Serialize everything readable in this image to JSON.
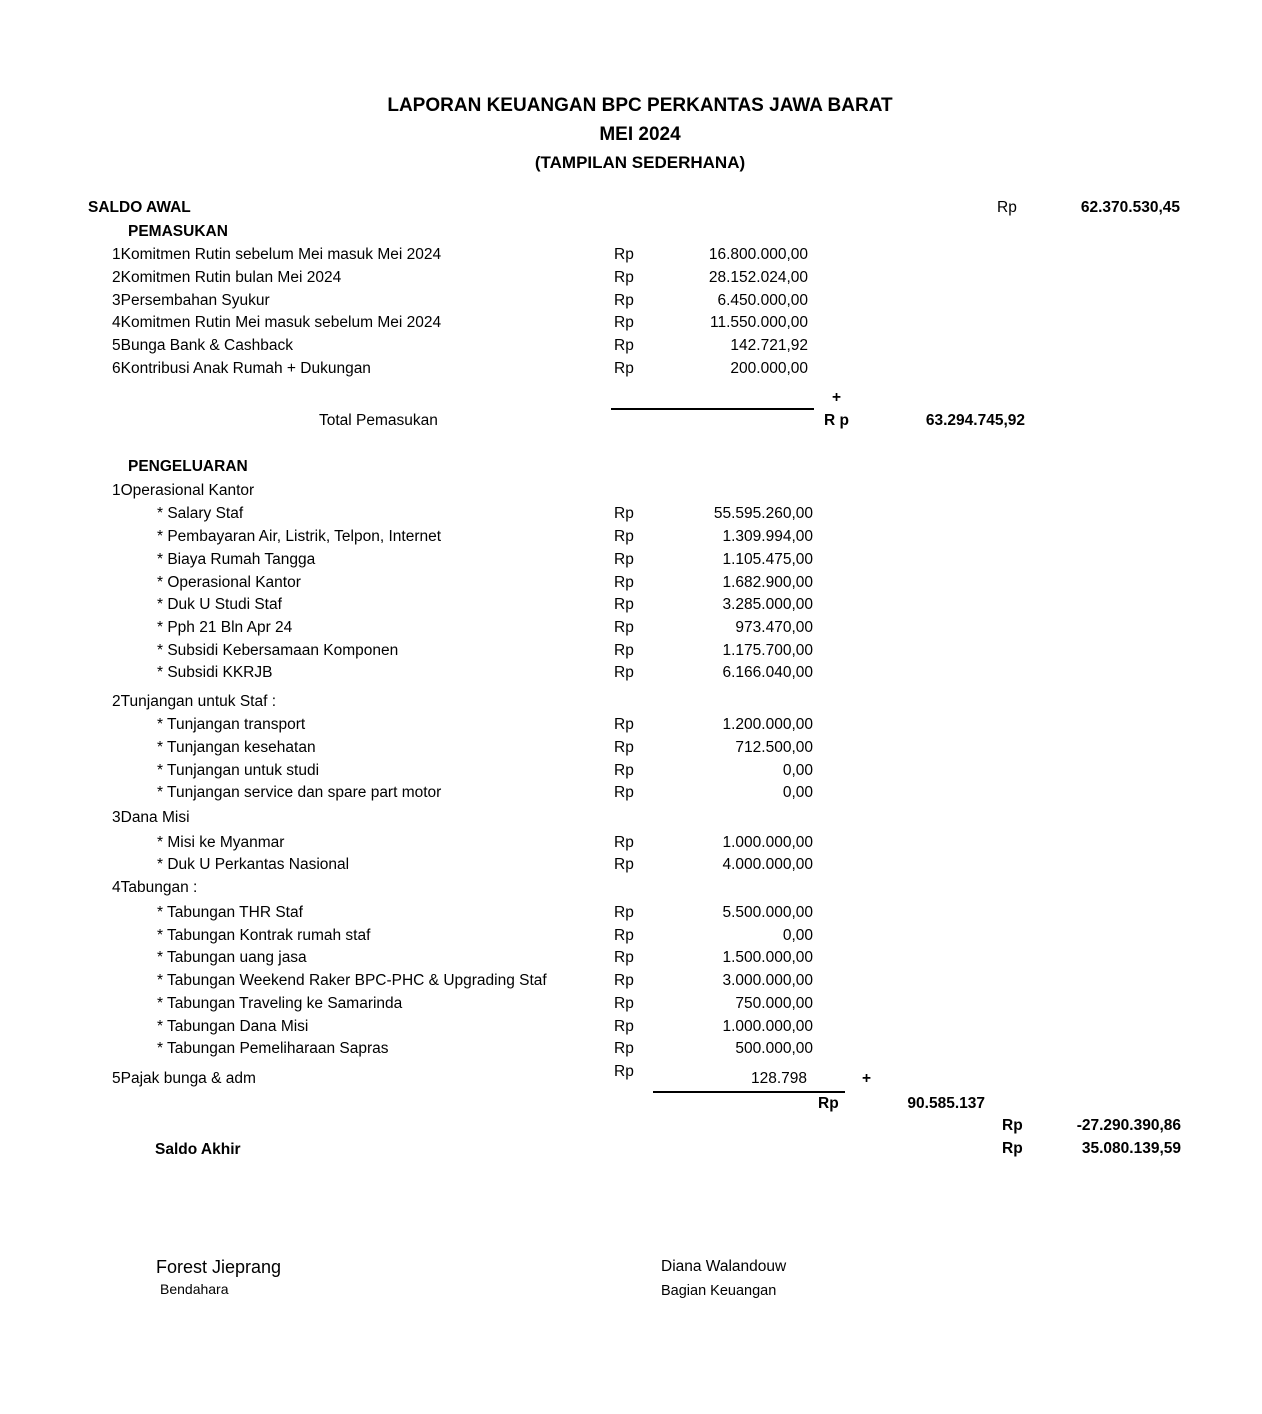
{
  "header": {
    "title": "LAPORAN KEUANGAN BPC PERKANTAS JAWA BARAT",
    "period": "MEI 2024",
    "subtitle": "(TAMPILAN SEDERHANA)"
  },
  "currency": "Rp",
  "saldo_awal": {
    "label": "SALDO AWAL",
    "currency": "Rp",
    "amount": "62.370.530,45"
  },
  "pemasukan": {
    "label": "PEMASUKAN",
    "items": [
      {
        "no": "1",
        "label": "Komitmen Rutin sebelum Mei masuk Mei 2024",
        "amount": "16.800.000,00"
      },
      {
        "no": "2",
        "label": "Komitmen Rutin bulan Mei 2024",
        "amount": "28.152.024,00"
      },
      {
        "no": "3",
        "label": "Persembahan Syukur",
        "amount": "6.450.000,00"
      },
      {
        "no": "4",
        "label": "Komitmen Rutin Mei masuk sebelum Mei 2024",
        "amount": "11.550.000,00"
      },
      {
        "no": "5",
        "label": "Bunga Bank & Cashback",
        "amount": "142.721,92"
      },
      {
        "no": "6",
        "label": "Kontribusi Anak Rumah + Dukungan",
        "amount": "200.000,00"
      }
    ],
    "plus": "+",
    "total_label": "Total Pemasukan",
    "total_currency": "R p",
    "total": "63.294.745,92"
  },
  "pengeluaran": {
    "label": "PENGELUARAN",
    "groups": [
      {
        "no": "1",
        "label": "Operasional Kantor",
        "items": [
          {
            "label": "* Salary Staf",
            "amount": "55.595.260,00"
          },
          {
            "label": "* Pembayaran Air, Listrik, Telpon, Internet",
            "amount": "1.309.994,00"
          },
          {
            "label": "* Biaya Rumah Tangga",
            "amount": "1.105.475,00"
          },
          {
            "label": "* Operasional Kantor",
            "amount": "1.682.900,00"
          },
          {
            "label": "* Duk U Studi Staf",
            "amount": "3.285.000,00"
          },
          {
            "label": "* Pph 21 Bln Apr 24",
            "amount": "973.470,00"
          },
          {
            "label": "* Subsidi Kebersamaan Komponen",
            "amount": "1.175.700,00"
          },
          {
            "label": "* Subsidi KKRJB",
            "amount": "6.166.040,00"
          }
        ]
      },
      {
        "no": "2",
        "label": "Tunjangan untuk Staf :",
        "items": [
          {
            "label": "* Tunjangan transport",
            "amount": "1.200.000,00"
          },
          {
            "label": "* Tunjangan kesehatan",
            "amount": "712.500,00"
          },
          {
            "label": "* Tunjangan untuk studi",
            "amount": "0,00"
          },
          {
            "label": "* Tunjangan service dan spare part motor",
            "amount": "0,00"
          }
        ]
      },
      {
        "no": "3",
        "label": "Dana Misi",
        "items": [
          {
            "label": "* Misi ke Myanmar",
            "amount": "1.000.000,00"
          },
          {
            "label": "* Duk U Perkantas Nasional",
            "amount": "4.000.000,00"
          }
        ]
      },
      {
        "no": "4",
        "label": "Tabungan :",
        "items": [
          {
            "label": "* Tabungan THR Staf",
            "amount": "5.500.000,00"
          },
          {
            "label": "* Tabungan Kontrak rumah staf",
            "amount": "0,00"
          },
          {
            "label": "* Tabungan uang jasa",
            "amount": "1.500.000,00"
          },
          {
            "label": "* Tabungan Weekend Raker BPC-PHC & Upgrading Staf",
            "amount": "3.000.000,00"
          },
          {
            "label": "* Tabungan Traveling ke Samarinda",
            "amount": "750.000,00"
          },
          {
            "label": "* Tabungan Dana Misi",
            "amount": "1.000.000,00"
          },
          {
            "label": "* Tabungan Pemeliharaan Sapras",
            "amount": "500.000,00"
          }
        ]
      }
    ],
    "pajak": {
      "no": "5",
      "label": "Pajak bunga & adm",
      "amount": "128.798"
    },
    "plus": "+",
    "total_currency": "Rp",
    "total": "90.585.137"
  },
  "selisih": {
    "currency": "Rp",
    "amount": "-27.290.390,86"
  },
  "saldo_akhir": {
    "label": "Saldo Akhir",
    "currency": "Rp",
    "amount": "35.080.139,59"
  },
  "signatures": [
    {
      "name": "Forest Jieprang",
      "role": "Bendahara"
    },
    {
      "name": "Diana Walandouw",
      "role": "Bagian Keuangan"
    }
  ]
}
